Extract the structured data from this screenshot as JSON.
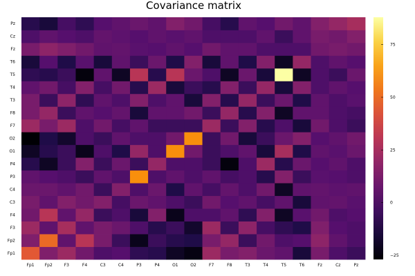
{
  "chart_data": {
    "type": "heatmap",
    "title": "Covariance matrix",
    "x_categories": [
      "Fp1",
      "Fp2",
      "F3",
      "F4",
      "C3",
      "C4",
      "P3",
      "P4",
      "O1",
      "O2",
      "F7",
      "F8",
      "T3",
      "T4",
      "T5",
      "T6",
      "Fz",
      "Cz",
      "Pz"
    ],
    "y_categories": [
      "Fp1",
      "Fp2",
      "F3",
      "F4",
      "C3",
      "C4",
      "P3",
      "P4",
      "O1",
      "O2",
      "F7",
      "F8",
      "T3",
      "T4",
      "T5",
      "T6",
      "Fz",
      "Cz",
      "Pz"
    ],
    "y_order": "bottom-to-top",
    "colormap": "inferno",
    "colorbar": {
      "range": [
        -27,
        88
      ],
      "ticks": [
        -25,
        0,
        25,
        50,
        75
      ]
    },
    "values": [
      [
        45,
        14,
        22,
        10,
        0,
        2,
        -8,
        -10,
        -20,
        -24,
        22,
        12,
        15,
        8,
        5,
        -15,
        12,
        0,
        -5
      ],
      [
        14,
        50,
        5,
        30,
        12,
        -5,
        -22,
        -5,
        -10,
        -12,
        12,
        20,
        -5,
        10,
        0,
        2,
        18,
        5,
        0
      ],
      [
        22,
        5,
        25,
        5,
        12,
        8,
        0,
        -10,
        -5,
        -18,
        22,
        -5,
        18,
        -2,
        -8,
        -12,
        14,
        2,
        0
      ],
      [
        10,
        30,
        5,
        20,
        -5,
        0,
        -15,
        15,
        -22,
        0,
        0,
        5,
        -8,
        15,
        -20,
        3,
        10,
        0,
        2
      ],
      [
        12,
        5,
        15,
        10,
        15,
        -2,
        8,
        5,
        0,
        -5,
        10,
        2,
        5,
        -2,
        5,
        -15,
        5,
        6,
        3
      ],
      [
        8,
        8,
        5,
        10,
        -5,
        15,
        0,
        8,
        -12,
        5,
        -2,
        6,
        0,
        10,
        -20,
        5,
        6,
        4,
        5
      ],
      [
        5,
        2,
        0,
        -5,
        5,
        0,
        60,
        0,
        5,
        0,
        5,
        -2,
        0,
        -10,
        15,
        -5,
        3,
        2,
        0
      ],
      [
        -10,
        -20,
        -5,
        15,
        -5,
        8,
        -5,
        20,
        0,
        0,
        -5,
        -25,
        0,
        22,
        -10,
        8,
        2,
        5,
        0
      ],
      [
        -20,
        -10,
        -5,
        -22,
        0,
        -12,
        20,
        0,
        60,
        10,
        -5,
        0,
        5,
        -15,
        25,
        -12,
        5,
        3,
        8
      ],
      [
        -27,
        -12,
        -18,
        0,
        -5,
        5,
        0,
        0,
        10,
        60,
        -5,
        10,
        -15,
        -5,
        8,
        15,
        2,
        5,
        10
      ],
      [
        22,
        12,
        22,
        0,
        10,
        -2,
        5,
        -5,
        -5,
        -5,
        22,
        -5,
        15,
        -10,
        0,
        -15,
        10,
        0,
        -5
      ],
      [
        12,
        20,
        -5,
        5,
        2,
        6,
        -15,
        5,
        5,
        10,
        -5,
        20,
        -10,
        15,
        -20,
        5,
        5,
        0,
        -2
      ],
      [
        12,
        -5,
        18,
        -8,
        5,
        0,
        15,
        0,
        5,
        -15,
        15,
        -10,
        20,
        -5,
        8,
        -12,
        5,
        0,
        3
      ],
      [
        5,
        10,
        -2,
        15,
        -2,
        10,
        -10,
        22,
        -15,
        -5,
        -10,
        15,
        -5,
        20,
        -15,
        15,
        0,
        5,
        2
      ],
      [
        -8,
        -10,
        -5,
        -25,
        5,
        -20,
        30,
        -10,
        30,
        8,
        0,
        -20,
        8,
        -15,
        88,
        -20,
        0,
        -5,
        8
      ],
      [
        -15,
        2,
        -12,
        3,
        -15,
        5,
        -5,
        8,
        -12,
        15,
        -15,
        5,
        -12,
        15,
        -20,
        20,
        0,
        5,
        2
      ],
      [
        12,
        18,
        14,
        10,
        5,
        6,
        3,
        2,
        5,
        2,
        10,
        5,
        5,
        0,
        0,
        0,
        10,
        12,
        10
      ],
      [
        0,
        5,
        2,
        0,
        6,
        4,
        2,
        5,
        3,
        5,
        0,
        0,
        0,
        5,
        -5,
        5,
        12,
        10,
        15
      ],
      [
        -10,
        -15,
        -2,
        -8,
        2,
        5,
        8,
        5,
        15,
        10,
        -2,
        -10,
        5,
        2,
        10,
        5,
        15,
        20,
        25
      ]
    ]
  }
}
